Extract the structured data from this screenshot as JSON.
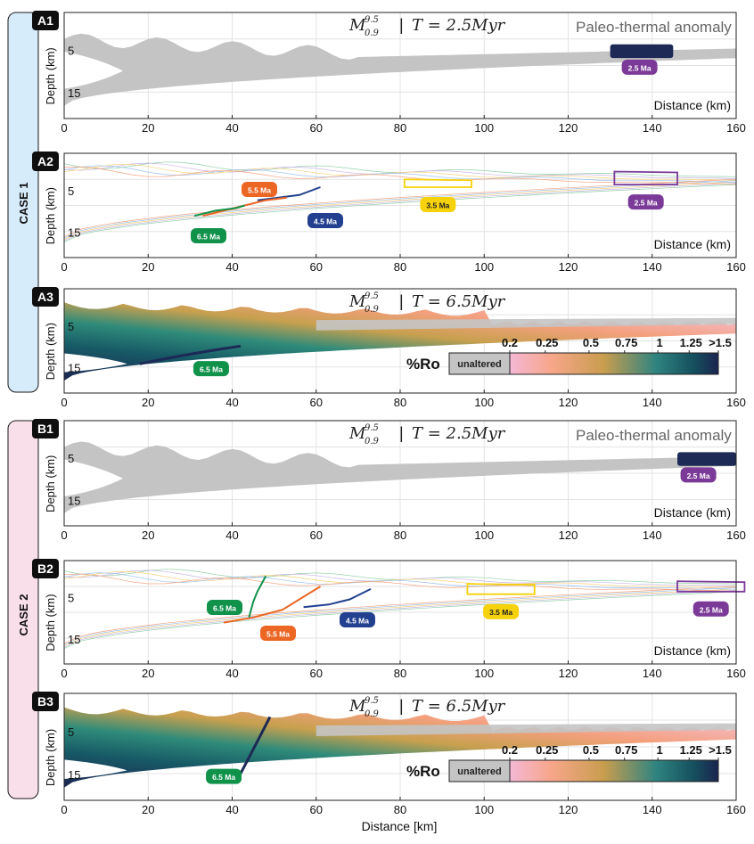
{
  "figure": {
    "axis": {
      "xlim": [
        0,
        160
      ],
      "ylim": [
        0,
        20
      ],
      "xticks": [
        0,
        20,
        40,
        60,
        80,
        100,
        120,
        140,
        160
      ],
      "grid": true
    },
    "x_axis_label_inside": "Distance (km)",
    "x_axis_label_bottom": "Distance [km]",
    "y_axis_label": "Depth (km)",
    "depth_ticks": [
      "5",
      "15"
    ],
    "colors": {
      "case1_band": "#d7ecfb",
      "case2_band": "#f9dfe9",
      "paleo": "#1c2a55",
      "gray_body": "#c4c4c4",
      "ma_2_5": "#7b3a98",
      "ma_3_5": "#f5d20a",
      "ma_4_5": "#22408f",
      "ma_5_5": "#ec6624",
      "ma_6_5": "#10924b"
    },
    "cases": [
      {
        "label": "CASE 1",
        "panels": [
          "A1",
          "A2",
          "A3"
        ]
      },
      {
        "label": "CASE 2",
        "panels": [
          "B1",
          "B2",
          "B3"
        ]
      }
    ],
    "colorbar": {
      "title": "%Ro",
      "unaltered_label": "unaltered",
      "tick_labels": [
        "0.2",
        "0.25",
        "0.5",
        "0.75",
        "1",
        "1.25",
        ">1.5"
      ]
    }
  },
  "chart_data": [
    {
      "panel": "A1",
      "type": "area",
      "title_model": "M",
      "title_sup": "9.5",
      "title_sub": "0.9",
      "title_sep": "|",
      "title_time": "T = 2.5Myr",
      "annotation": "Paleo-thermal anomaly",
      "anomaly_x": [
        130,
        145
      ],
      "labels": [
        {
          "text": "2.5 Ma",
          "x": 137,
          "depth": 10
        }
      ]
    },
    {
      "panel": "A2",
      "type": "line",
      "series": [
        {
          "label": "2.5 Ma",
          "polygon_x": [
            131,
            146
          ],
          "depth": [
            3.5,
            6
          ]
        },
        {
          "label": "3.5 Ma",
          "polygon_x": [
            81,
            97
          ],
          "depth": [
            5,
            6.5
          ]
        },
        {
          "label": "4.5 Ma",
          "path_x": [
            46,
            51,
            56,
            61
          ],
          "path_depth": [
            9,
            8.5,
            8,
            6.5
          ]
        },
        {
          "label": "5.5 Ma",
          "path_x": [
            33,
            38,
            43,
            48,
            53
          ],
          "path_depth": [
            12,
            11,
            10,
            9,
            8.5
          ]
        },
        {
          "label": "6.5 Ma",
          "path_x": [
            31,
            36,
            41,
            43
          ],
          "path_depth": [
            12,
            11,
            10.5,
            10
          ]
        }
      ]
    },
    {
      "panel": "A3",
      "type": "heatmap",
      "title_model": "M",
      "title_sup": "9.5",
      "title_sub": "0.9",
      "title_sep": "|",
      "title_time": "T = 6.5Myr",
      "labels": [
        {
          "text": "6.5 Ma",
          "x": 35,
          "depth": 13
        }
      ]
    },
    {
      "panel": "B1",
      "type": "area",
      "title_model": "M",
      "title_sup": "9.5",
      "title_sub": "0.9",
      "title_sep": "|",
      "title_time": "T = 2.5Myr",
      "annotation": "Paleo-thermal anomaly",
      "anomaly_x": [
        146,
        160
      ],
      "labels": [
        {
          "text": "2.5 Ma",
          "x": 151,
          "depth": 10
        }
      ]
    },
    {
      "panel": "B2",
      "type": "line",
      "series": [
        {
          "label": "2.5 Ma",
          "polygon_x": [
            146,
            162
          ],
          "depth": [
            4,
            6
          ]
        },
        {
          "label": "3.5 Ma",
          "polygon_x": [
            96,
            112
          ],
          "depth": [
            4.5,
            6.5
          ]
        },
        {
          "label": "4.5 Ma",
          "path_x": [
            57,
            63,
            68,
            73
          ],
          "path_depth": [
            9,
            8.5,
            7.5,
            5.5
          ]
        },
        {
          "label": "5.5 Ma",
          "path_x": [
            38,
            45,
            52,
            57,
            61
          ],
          "path_depth": [
            12,
            11,
            9.5,
            7,
            5
          ]
        },
        {
          "label": "6.5 Ma",
          "path_x": [
            44,
            45,
            46,
            48
          ],
          "path_depth": [
            11,
            8,
            6,
            3
          ]
        }
      ]
    },
    {
      "panel": "B3",
      "type": "heatmap",
      "title_model": "M",
      "title_sup": "9.5",
      "title_sub": "0.9",
      "title_sep": "|",
      "title_time": "T = 6.5Myr",
      "labels": [
        {
          "text": "6.5 Ma",
          "x": 38,
          "depth": 14
        }
      ]
    }
  ]
}
